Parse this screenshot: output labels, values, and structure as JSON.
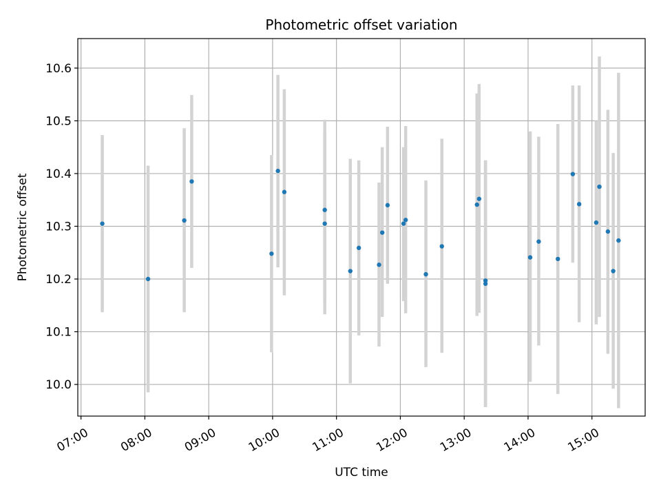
{
  "chart_data": {
    "type": "scatter",
    "title": "Photometric offset variation",
    "xlabel": "UTC time",
    "ylabel": "Photometric offset",
    "x_tick_labels": [
      "07:00",
      "08:00",
      "09:00",
      "10:00",
      "11:00",
      "12:00",
      "13:00",
      "14:00",
      "15:00"
    ],
    "y_tick_labels": [
      "10.0",
      "10.1",
      "10.2",
      "10.3",
      "10.4",
      "10.5",
      "10.6"
    ],
    "xlim": [
      "06:57",
      "15:50"
    ],
    "ylim": [
      9.94,
      10.656
    ],
    "grid": true,
    "colors": {
      "point": "#1f77b4",
      "errorbar": "#d3d3d3",
      "grid": "#b0b0b0"
    },
    "points": [
      {
        "x": "07:20",
        "y": 10.305,
        "ylo": 10.137,
        "yhi": 10.473
      },
      {
        "x": "08:03",
        "y": 10.2,
        "ylo": 9.985,
        "yhi": 10.415
      },
      {
        "x": "08:37",
        "y": 10.311,
        "ylo": 10.137,
        "yhi": 10.486
      },
      {
        "x": "08:44",
        "y": 10.385,
        "ylo": 10.221,
        "yhi": 10.549
      },
      {
        "x": "09:59",
        "y": 10.248,
        "ylo": 10.061,
        "yhi": 10.435
      },
      {
        "x": "10:05",
        "y": 10.405,
        "ylo": 10.222,
        "yhi": 10.587
      },
      {
        "x": "10:11",
        "y": 10.365,
        "ylo": 10.169,
        "yhi": 10.56
      },
      {
        "x": "10:49",
        "y": 10.331,
        "ylo": 10.159,
        "yhi": 10.502
      },
      {
        "x": "10:49",
        "y": 10.305,
        "ylo": 10.133,
        "yhi": 10.478
      },
      {
        "x": "11:13",
        "y": 10.215,
        "ylo": 10.002,
        "yhi": 10.428
      },
      {
        "x": "11:21",
        "y": 10.259,
        "ylo": 10.093,
        "yhi": 10.425
      },
      {
        "x": "11:40",
        "y": 10.227,
        "ylo": 10.072,
        "yhi": 10.383
      },
      {
        "x": "11:43",
        "y": 10.288,
        "ylo": 10.128,
        "yhi": 10.45
      },
      {
        "x": "11:48",
        "y": 10.34,
        "ylo": 10.191,
        "yhi": 10.489
      },
      {
        "x": "12:03",
        "y": 10.305,
        "ylo": 10.158,
        "yhi": 10.45
      },
      {
        "x": "12:05",
        "y": 10.312,
        "ylo": 10.135,
        "yhi": 10.49
      },
      {
        "x": "12:24",
        "y": 10.209,
        "ylo": 10.033,
        "yhi": 10.387
      },
      {
        "x": "12:39",
        "y": 10.262,
        "ylo": 10.06,
        "yhi": 10.466
      },
      {
        "x": "13:12",
        "y": 10.341,
        "ylo": 10.13,
        "yhi": 10.552
      },
      {
        "x": "13:14",
        "y": 10.352,
        "ylo": 10.136,
        "yhi": 10.57
      },
      {
        "x": "13:20",
        "y": 10.197,
        "ylo": 9.957,
        "yhi": 10.425
      },
      {
        "x": "13:20",
        "y": 10.191,
        "ylo": 9.957,
        "yhi": 10.425
      },
      {
        "x": "14:02",
        "y": 10.241,
        "ylo": 10.005,
        "yhi": 10.48
      },
      {
        "x": "14:10",
        "y": 10.271,
        "ylo": 10.074,
        "yhi": 10.47
      },
      {
        "x": "14:28",
        "y": 10.238,
        "ylo": 9.982,
        "yhi": 10.494
      },
      {
        "x": "14:42",
        "y": 10.399,
        "ylo": 10.231,
        "yhi": 10.567
      },
      {
        "x": "14:48",
        "y": 10.342,
        "ylo": 10.118,
        "yhi": 10.567
      },
      {
        "x": "15:04",
        "y": 10.307,
        "ylo": 10.114,
        "yhi": 10.5
      },
      {
        "x": "15:07",
        "y": 10.375,
        "ylo": 10.128,
        "yhi": 10.622
      },
      {
        "x": "15:15",
        "y": 10.29,
        "ylo": 10.058,
        "yhi": 10.521
      },
      {
        "x": "15:20",
        "y": 10.215,
        "ylo": 9.992,
        "yhi": 10.439
      },
      {
        "x": "15:25",
        "y": 10.273,
        "ylo": 9.955,
        "yhi": 10.591
      }
    ]
  }
}
